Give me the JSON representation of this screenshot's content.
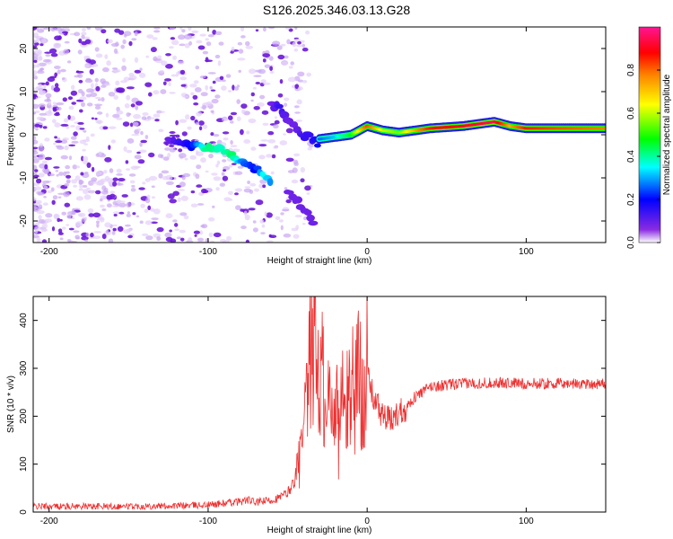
{
  "figure": {
    "title": "S126.2025.346.03.13.G28",
    "background": "#ffffff"
  },
  "chart_data": [
    {
      "type": "heatmap",
      "title": "",
      "xlabel": "Height of straight line (km)",
      "ylabel": "Frequency (Hz)",
      "xlim": [
        -210,
        150
      ],
      "ylim": [
        -25,
        25
      ],
      "xticks": [
        -200,
        -100,
        0,
        100
      ],
      "yticks": [
        -20,
        -10,
        0,
        10,
        20
      ],
      "colorbar": {
        "label": "Normalized spectral amplitude",
        "ticks": [
          0.0,
          0.2,
          0.4,
          0.6,
          0.8
        ],
        "range": [
          0,
          1
        ],
        "colormap": [
          "#ffffff",
          "#8a2be2",
          "#0000ff",
          "#00ffff",
          "#00ff00",
          "#ffff00",
          "#ff8000",
          "#ff0000",
          "#ff1493"
        ]
      },
      "ridge": {
        "x": [
          -125,
          -110,
          -100,
          -92,
          -85,
          -78,
          -70,
          -65,
          -60
        ],
        "y": [
          -1.5,
          -2.5,
          -3.0,
          -3.5,
          -5.0,
          -6.5,
          -8.0,
          -9.0,
          -11.0
        ],
        "amp": [
          0.15,
          0.25,
          0.45,
          0.4,
          0.45,
          0.3,
          0.25,
          0.4,
          0.3
        ]
      },
      "upper_branch": {
        "x": [
          -60,
          -55,
          -50,
          -45,
          -40,
          -35,
          -30
        ],
        "y": [
          7,
          6,
          4,
          2,
          0,
          -1,
          -2
        ],
        "amp": [
          0.15,
          0.2,
          0.15,
          0.15,
          0.2,
          0.2,
          0.25
        ]
      },
      "lower_branch": {
        "x": [
          -50,
          -45,
          -40,
          -36,
          -33
        ],
        "y": [
          -13,
          -15,
          -17,
          -19,
          -21
        ],
        "amp": [
          0.15,
          0.15,
          0.15,
          0.15,
          0.15
        ]
      },
      "band": {
        "x": [
          -30,
          -20,
          -10,
          0,
          10,
          20,
          40,
          60,
          80,
          90,
          100,
          120,
          150
        ],
        "y": [
          -1,
          -0.5,
          0,
          2,
          1,
          0.5,
          1.5,
          2,
          3,
          2,
          1.5,
          1.5,
          1.5
        ],
        "amp": [
          0.3,
          0.35,
          0.5,
          0.8,
          0.6,
          0.55,
          0.85,
          0.9,
          0.95,
          0.7,
          0.85,
          0.8,
          0.75
        ]
      }
    },
    {
      "type": "line",
      "title": "",
      "xlabel": "Height of straight line (km)",
      "ylabel": "SNR (10 * v/v)",
      "xlim": [
        -210,
        150
      ],
      "ylim": [
        0,
        450
      ],
      "xticks": [
        -200,
        -100,
        0,
        100
      ],
      "yticks": [
        0,
        100,
        200,
        300,
        400
      ],
      "series": [
        {
          "name": "SNR",
          "color": "#ee3030",
          "x": [
            -210,
            -180,
            -150,
            -120,
            -100,
            -90,
            -80,
            -75,
            -70,
            -60,
            -55,
            -50,
            -45,
            -40,
            -38,
            -36,
            -34,
            -33,
            -32,
            -30,
            -28,
            -26,
            -24,
            -22,
            -20,
            -18,
            -16,
            -14,
            -12,
            -10,
            -8,
            -6,
            -4,
            -2,
            0,
            2,
            5,
            10,
            15,
            20,
            25,
            30,
            40,
            50,
            60,
            80,
            100,
            120,
            150
          ],
          "values": [
            12,
            12,
            12,
            13,
            15,
            18,
            22,
            25,
            20,
            25,
            30,
            40,
            70,
            150,
            220,
            300,
            380,
            430,
            350,
            250,
            300,
            150,
            260,
            200,
            280,
            150,
            250,
            190,
            230,
            290,
            250,
            300,
            260,
            280,
            300,
            260,
            230,
            200,
            190,
            210,
            220,
            240,
            262,
            265,
            268,
            270,
            268,
            268,
            268
          ]
        }
      ]
    }
  ]
}
